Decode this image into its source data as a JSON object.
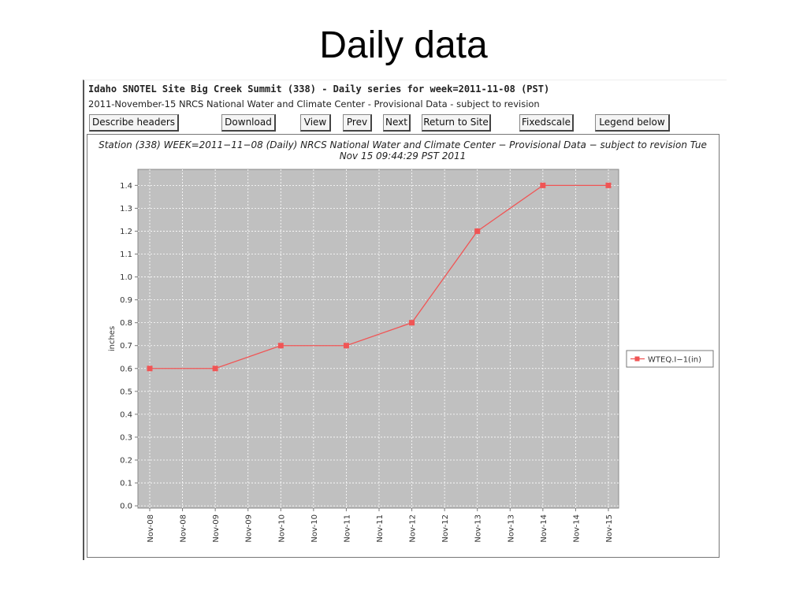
{
  "slide_title": "Daily data",
  "header": {
    "title": "Idaho SNOTEL Site Big Creek Summit (338) - Daily series for week=2011-11-08 (PST)",
    "subtitle": "2011-November-15 NRCS National Water and Climate Center - Provisional Data - subject to revision"
  },
  "buttons": [
    "Describe headers",
    "Download",
    "View",
    "Prev",
    "Next",
    "Return to Site",
    "Fixedscale",
    "Legend below"
  ],
  "chart_data": {
    "type": "line",
    "title": "Station (338) WEEK=2011−11−08 (Daily) NRCS National Water and Climate Center − Provisional Data − subject to revision Tue Nov 15 09:44:29 PST 2011",
    "y_label": "inches",
    "categories": [
      "Nov-08",
      "Nov-09",
      "Nov-10",
      "Nov-11",
      "Nov-12",
      "Nov-13",
      "Nov-14",
      "Nov-15"
    ],
    "xticks": [
      "Nov-08",
      "Nov-08",
      "Nov-09",
      "Nov-09",
      "Nov-10",
      "Nov-10",
      "Nov-11",
      "Nov-11",
      "Nov-12",
      "Nov-12",
      "Nov-13",
      "Nov-13",
      "Nov-14",
      "Nov-14",
      "Nov-15"
    ],
    "series": [
      {
        "name": "WTEQ.I−1(in)",
        "color": "#f05555",
        "values": [
          0.6,
          0.6,
          0.7,
          0.7,
          0.8,
          1.2,
          1.4,
          1.4
        ]
      }
    ],
    "ylim": [
      -0.01,
      1.47
    ],
    "yticks": [
      {
        "value": 0,
        "label": "0.0"
      },
      0.1,
      0.2,
      0.3,
      0.4,
      0.5,
      0.6,
      0.7,
      0.8,
      0.9,
      {
        "value": 1,
        "label": "1.0"
      },
      1.1,
      1.2,
      1.3,
      1.4
    ],
    "grid": true,
    "plot_background": "#c0c0c0",
    "legend": "right"
  }
}
